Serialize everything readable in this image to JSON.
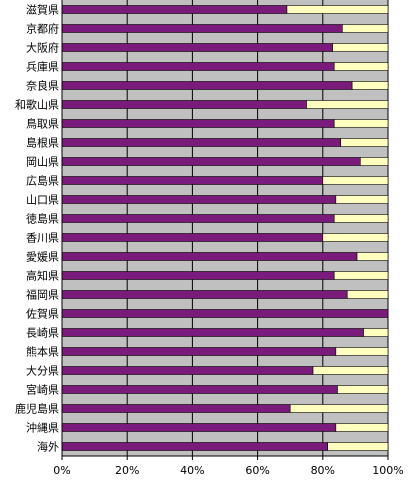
{
  "chart_data": {
    "type": "bar",
    "orientation": "horizontal",
    "stacked": true,
    "percent_stacked": true,
    "categories": [
      "滋賀県",
      "京都府",
      "大阪府",
      "兵庫県",
      "奈良県",
      "和歌山県",
      "鳥取県",
      "島根県",
      "岡山県",
      "広島県",
      "山口県",
      "徳島県",
      "香川県",
      "愛媛県",
      "高知県",
      "福岡県",
      "佐賀県",
      "長崎県",
      "熊本県",
      "大分県",
      "宮崎県",
      "鹿児島県",
      "沖縄県",
      "海外"
    ],
    "series": [
      {
        "color": "#7a1a7a",
        "values": [
          69,
          86,
          83,
          83.5,
          89,
          75,
          83.5,
          85.5,
          91.5,
          80,
          84,
          83.5,
          80,
          90.5,
          83.5,
          87.5,
          100,
          92.5,
          84,
          77,
          84.5,
          70,
          84,
          81.5
        ]
      },
      {
        "color": "#ffffc0",
        "values": [
          31,
          14,
          17,
          16.5,
          11,
          25,
          16.5,
          14.5,
          8.5,
          20,
          16,
          16.5,
          20,
          9.5,
          16.5,
          12.5,
          0,
          7.5,
          16,
          23,
          15.5,
          30,
          16,
          18.5
        ]
      }
    ],
    "xlim": [
      0,
      100
    ],
    "xticks": [
      "0%",
      "20%",
      "40%",
      "60%",
      "80%",
      "100%"
    ],
    "plot_background": "#c0c0c0",
    "grid": true,
    "legend": false
  }
}
